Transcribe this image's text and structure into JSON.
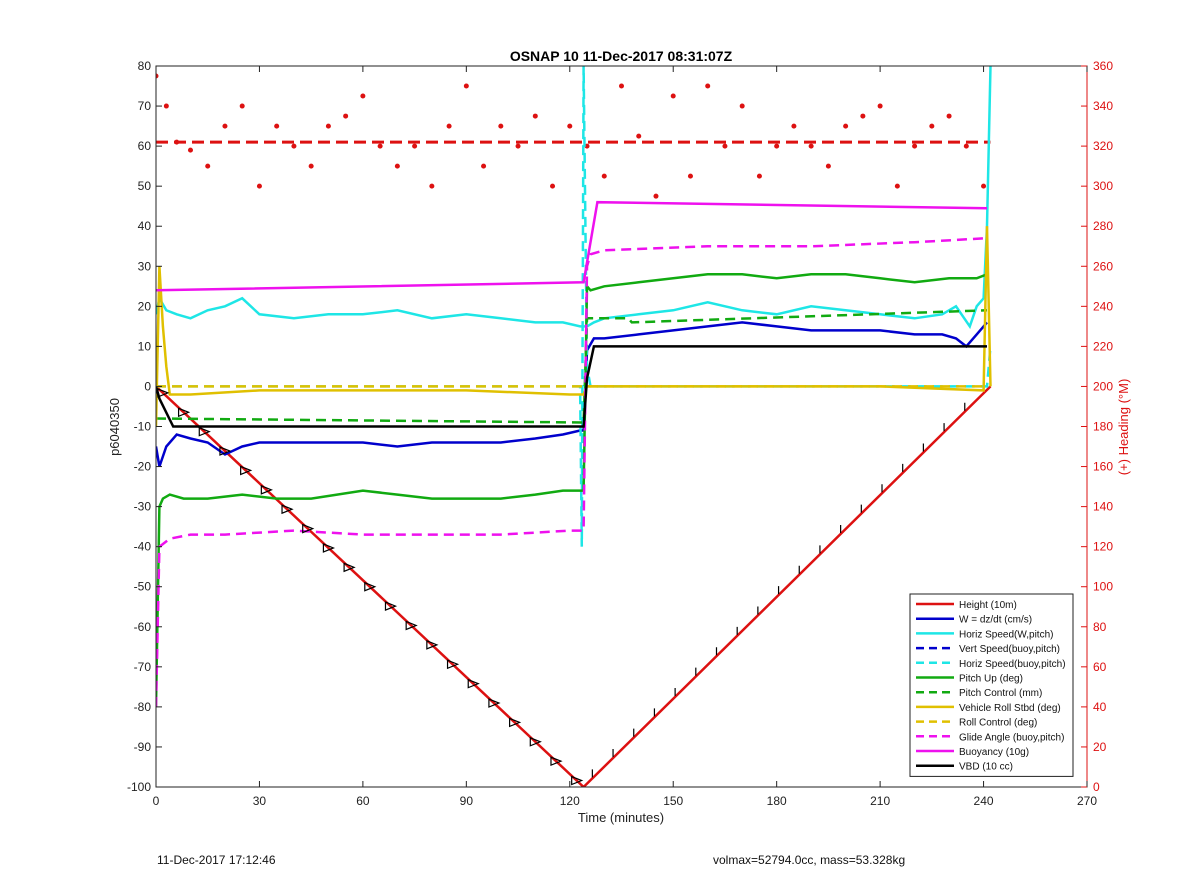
{
  "footer": {
    "left": "11-Dec-2017 17:12:46",
    "right": "volmax=52794.0cc, mass=53.328kg"
  },
  "chart_data": {
    "type": "line",
    "title": "OSNAP 10 11-Dec-2017 08:31:07Z",
    "xlabel": "Time (minutes)",
    "ylabel": "p6040350",
    "ylabel_right": "(+) Heading (°M)",
    "xlim": [
      0,
      270
    ],
    "ylim": [
      -100,
      80
    ],
    "ylim_right": [
      0,
      360
    ],
    "xticks": [
      0,
      30,
      60,
      90,
      120,
      150,
      180,
      210,
      240,
      270
    ],
    "yticks": [
      -100,
      -90,
      -80,
      -70,
      -60,
      -50,
      -40,
      -30,
      -20,
      -10,
      0,
      10,
      20,
      30,
      40,
      50,
      60,
      70,
      80
    ],
    "yticks_right": [
      0,
      20,
      40,
      60,
      80,
      100,
      120,
      140,
      160,
      180,
      200,
      220,
      240,
      260,
      280,
      300,
      320,
      340,
      360
    ],
    "grid": false,
    "legend_position": "bottom-right",
    "colors": {
      "red": "#dd1111",
      "blue": "#0000cc",
      "cyan": "#1ee6e6",
      "green": "#11aa11",
      "yellow": "#e0c000",
      "magenta": "#ee11ee",
      "black": "#000000",
      "axis_right": "#dd1111"
    },
    "series": [
      {
        "name": "Height (10m)",
        "color": "red",
        "style": "solid",
        "x": [
          0,
          124,
          242
        ],
        "y": [
          0,
          -100,
          0
        ]
      },
      {
        "name": "W = dz/dt (cm/s)",
        "color": "blue",
        "style": "solid",
        "x": [
          0,
          1,
          3,
          6,
          10,
          15,
          20,
          25,
          30,
          40,
          50,
          60,
          70,
          80,
          90,
          100,
          110,
          118,
          123,
          124,
          125,
          127,
          130,
          140,
          150,
          160,
          170,
          180,
          190,
          200,
          210,
          220,
          228,
          232,
          235,
          238,
          241
        ],
        "y": [
          -15,
          -20,
          -15,
          -12,
          -13,
          -14,
          -17,
          -15,
          -14,
          -14,
          -14,
          -14,
          -15,
          -14,
          -14,
          -14,
          -13,
          -12,
          -11,
          -11,
          9,
          12,
          12,
          13,
          14,
          15,
          16,
          15,
          14,
          14,
          14,
          13,
          13,
          12,
          10,
          13,
          16
        ]
      },
      {
        "name": "Horiz Speed(W,pitch)",
        "color": "cyan",
        "style": "solid",
        "x": [
          0,
          1,
          3,
          6,
          10,
          15,
          20,
          25,
          30,
          40,
          50,
          60,
          70,
          80,
          90,
          100,
          110,
          118,
          123,
          124,
          125,
          127,
          130,
          140,
          150,
          160,
          170,
          180,
          190,
          200,
          210,
          220,
          228,
          232,
          236,
          238,
          240,
          241,
          242
        ],
        "y": [
          18,
          22,
          19,
          18,
          17,
          19,
          20,
          22,
          18,
          17,
          18,
          18,
          19,
          17,
          18,
          17,
          16,
          16,
          15,
          15,
          15,
          16,
          17,
          18,
          19,
          21,
          19,
          18,
          20,
          19,
          18,
          17,
          18,
          20,
          15,
          20,
          22,
          40,
          80
        ]
      },
      {
        "name": "Vert Speed(buoy,pitch)",
        "color": "blue",
        "style": "dashed",
        "x": [],
        "y": []
      },
      {
        "name": "Horiz Speed(buoy,pitch)",
        "color": "cyan",
        "style": "dashed",
        "x": [
          0,
          123,
          123.5,
          124,
          125,
          126,
          241,
          242
        ],
        "y": [
          0,
          0,
          -40,
          80,
          5,
          0,
          0,
          10
        ]
      },
      {
        "name": "Pitch Up (deg)",
        "color": "green",
        "style": "solid",
        "x": [
          0,
          1,
          2,
          4,
          8,
          15,
          25,
          35,
          45,
          60,
          70,
          80,
          90,
          100,
          110,
          118,
          123,
          124,
          125,
          126,
          130,
          140,
          150,
          160,
          170,
          180,
          190,
          200,
          210,
          220,
          230,
          238,
          241
        ],
        "y": [
          -80,
          -30,
          -28,
          -27,
          -28,
          -28,
          -27,
          -28,
          -28,
          -26,
          -27,
          -28,
          -28,
          -28,
          -27,
          -26,
          -26,
          -26,
          25,
          24,
          25,
          26,
          27,
          28,
          28,
          27,
          28,
          28,
          27,
          26,
          27,
          27,
          28
        ]
      },
      {
        "name": "Pitch Control (mm)",
        "color": "green",
        "style": "dashed",
        "x": [
          0,
          124,
          125,
          137,
          138,
          241
        ],
        "y": [
          -8,
          -9,
          17,
          17,
          16,
          19
        ]
      },
      {
        "name": "Vehicle Roll Stbd (deg)",
        "color": "yellow",
        "style": "solid",
        "x": [
          0,
          1,
          2,
          3,
          4,
          10,
          30,
          60,
          90,
          120,
          124,
          125,
          150,
          180,
          210,
          240,
          241,
          242
        ],
        "y": [
          -10,
          30,
          15,
          5,
          -2,
          -2,
          -1,
          -1,
          -1,
          -2,
          -2,
          0,
          0,
          0,
          0,
          -1,
          40,
          0
        ]
      },
      {
        "name": "Roll Control (deg)",
        "color": "yellow",
        "style": "dashed",
        "x": [
          0,
          241
        ],
        "y": [
          0,
          0
        ]
      },
      {
        "name": "Glide Angle (buoy,pitch)",
        "color": "magenta",
        "style": "dashed",
        "x": [
          0,
          1,
          4,
          10,
          20,
          40,
          60,
          80,
          100,
          120,
          124,
          125,
          126,
          130,
          160,
          190,
          220,
          241
        ],
        "y": [
          -80,
          -40,
          -38,
          -37,
          -37,
          -36,
          -37,
          -37,
          -37,
          -36,
          -36,
          30,
          33,
          34,
          35,
          35,
          36,
          37
        ]
      },
      {
        "name": "Buoyancy (10g)",
        "color": "magenta",
        "style": "solid",
        "x": [
          0,
          124,
          128,
          241
        ],
        "y": [
          24,
          26,
          46,
          44.5
        ]
      },
      {
        "name": "VBD (10 cc)",
        "color": "black",
        "style": "solid",
        "x": [
          0,
          1,
          5,
          10,
          124,
          125,
          127,
          241
        ],
        "y": [
          0,
          -3,
          -10,
          -10,
          -10,
          2,
          10,
          10
        ]
      }
    ],
    "heading": {
      "name": "(+) Heading (°M)",
      "color": "red",
      "axis": "right",
      "style": "dots",
      "mean": 322,
      "x": [
        0,
        3,
        6,
        10,
        15,
        20,
        25,
        30,
        35,
        40,
        45,
        50,
        55,
        60,
        65,
        70,
        75,
        80,
        85,
        90,
        95,
        100,
        105,
        110,
        115,
        120,
        125,
        130,
        135,
        140,
        145,
        150,
        155,
        160,
        165,
        170,
        175,
        180,
        185,
        190,
        195,
        200,
        205,
        210,
        215,
        220,
        225,
        230,
        235,
        240
      ],
      "y": [
        355,
        340,
        322,
        318,
        310,
        330,
        340,
        300,
        330,
        320,
        310,
        330,
        335,
        345,
        320,
        310,
        320,
        300,
        330,
        350,
        310,
        330,
        320,
        335,
        300,
        330,
        320,
        305,
        350,
        325,
        295,
        345,
        305,
        350,
        320,
        340,
        305,
        320,
        330,
        320,
        310,
        330,
        335,
        340,
        300,
        320,
        330,
        335,
        320,
        300
      ]
    }
  }
}
